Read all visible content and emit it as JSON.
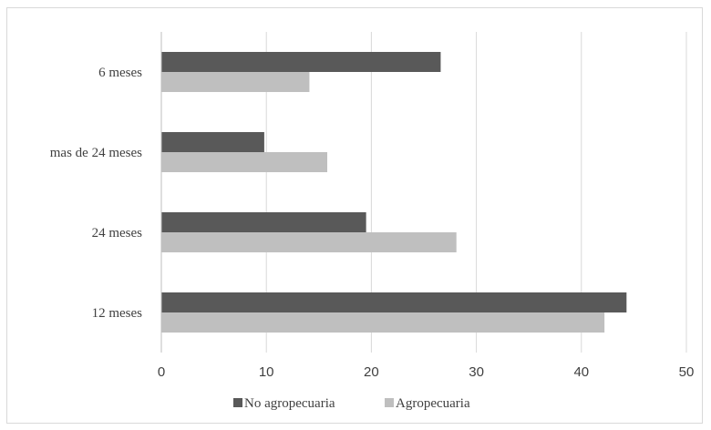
{
  "chart_data": {
    "type": "bar",
    "orientation": "horizontal",
    "categories": [
      "6 meses",
      "mas de 24 meses",
      "24 meses",
      "12 meses"
    ],
    "series": [
      {
        "name": "No agropecuaria",
        "color": "#595959",
        "values": [
          26.6,
          9.8,
          19.5,
          44.3
        ]
      },
      {
        "name": "Agropecuaria",
        "color": "#bfbfbf",
        "values": [
          14.1,
          15.8,
          28.1,
          42.2
        ]
      }
    ],
    "xlim": [
      0,
      50
    ],
    "xticks": [
      0,
      10,
      20,
      30,
      40,
      50
    ],
    "title": "",
    "xlabel": "",
    "ylabel": "",
    "grid": "vertical",
    "legend": "bottom"
  }
}
